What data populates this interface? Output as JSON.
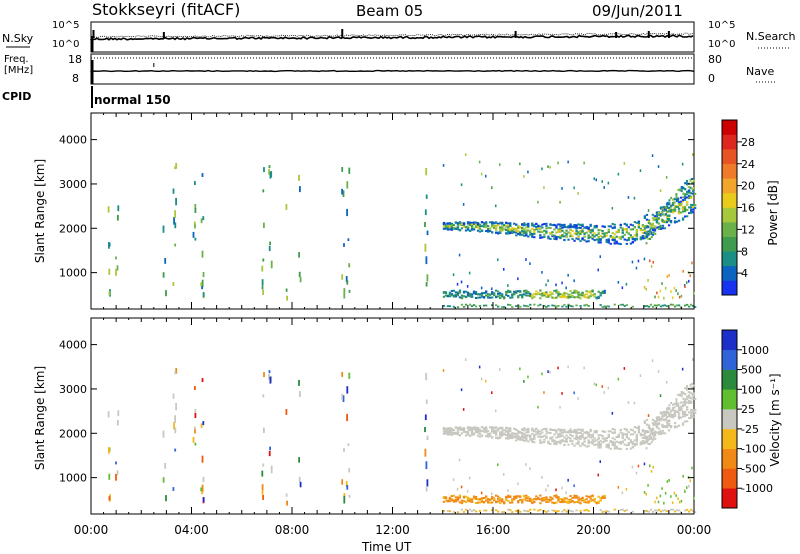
{
  "header": {
    "station": "Stokkseyri (fitACF)",
    "beam": "Beam 05",
    "date": "09/Jun/2011"
  },
  "noise_panel": {
    "label": "N.Sky",
    "right_label": "N.Search",
    "tick_top": "10^5",
    "tick_bottom": "10^0"
  },
  "freq_panel": {
    "label_line1": "Freq.",
    "label_line2": "[MHz]",
    "right_label": "Nave",
    "left_ticks": [
      "18",
      "8"
    ],
    "right_ticks": [
      "80",
      "0"
    ]
  },
  "cpid_panel": {
    "label": "CPID",
    "mode": "normal 150"
  },
  "chart_data": [
    {
      "type": "heatmap",
      "name": "power",
      "ylabel": "Slant Range [km]",
      "xlabel": "Time UT",
      "xlim": [
        "00:00",
        "24:00"
      ],
      "ylim": [
        180,
        4600
      ],
      "x_ticks": [
        "00:00",
        "04:00",
        "08:00",
        "12:00",
        "16:00",
        "20:00",
        "00:00"
      ],
      "y_ticks": [
        "1000",
        "2000",
        "3000",
        "4000"
      ],
      "colorbar": {
        "label": "Power [dB]",
        "range": [
          0,
          32
        ],
        "ticks": [
          "4",
          "8",
          "12",
          "16",
          "20",
          "24",
          "28"
        ],
        "colors": [
          "#1733f0",
          "#0a64c0",
          "#1b8f86",
          "#3f9b4d",
          "#6ab14a",
          "#a6c83c",
          "#e9cc1b",
          "#f2a52b",
          "#ef7a2a",
          "#e85324",
          "#dd261d",
          "#cc0000"
        ]
      }
    },
    {
      "type": "heatmap",
      "name": "velocity",
      "ylabel": "Slant Range [km]",
      "xlabel": "Time UT",
      "xlim": [
        "00:00",
        "24:00"
      ],
      "ylim": [
        180,
        4600
      ],
      "x_ticks": [
        "00:00",
        "04:00",
        "08:00",
        "12:00",
        "16:00",
        "20:00",
        "00:00"
      ],
      "y_ticks": [
        "1000",
        "2000",
        "3000",
        "4000"
      ],
      "ground_scatter_color": "#c8c8c0",
      "colorbar": {
        "label": "Velocity [m s⁻¹]",
        "ticks": [
          "1000",
          "500",
          "100",
          "25",
          "-25",
          "-100",
          "-500",
          "-1000"
        ],
        "colors": [
          "#1c2fc8",
          "#2f64d8",
          "#2b8a3c",
          "#5fbf2f",
          "#c8c8c0",
          "#f4b81b",
          "#f08a14",
          "#ee5a10",
          "#e01010"
        ]
      }
    }
  ],
  "xlabel": "Time UT"
}
